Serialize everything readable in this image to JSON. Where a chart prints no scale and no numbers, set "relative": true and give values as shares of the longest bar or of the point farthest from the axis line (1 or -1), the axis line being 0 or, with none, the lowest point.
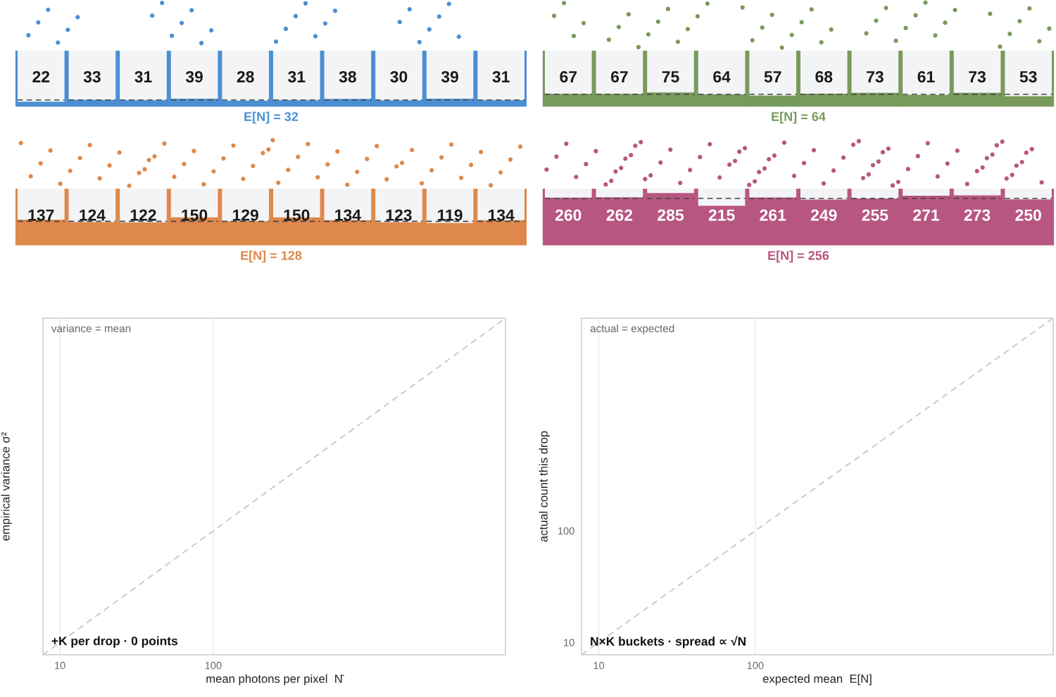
{
  "chart_data": [
    {
      "type": "bar",
      "categories": [
        null,
        null,
        null,
        null,
        null,
        null,
        null,
        null,
        null,
        null
      ],
      "series": [
        {
          "color": "#4a8fd4",
          "values": [
            22,
            33,
            31,
            39,
            28,
            31,
            38,
            30,
            39,
            31
          ]
        }
      ],
      "ylim": [
        0,
        310
      ],
      "tick_labels": false,
      "data_labels": true,
      "xlabel": "E[N] = 32",
      "ref_lines": [
        {
          "axis": "y",
          "value": 32,
          "color": "#444444",
          "line_style": "dashed"
        }
      ]
    },
    {
      "type": "bar",
      "categories": [
        null,
        null,
        null,
        null,
        null,
        null,
        null,
        null,
        null,
        null
      ],
      "series": [
        {
          "color": "#789a5a",
          "values": [
            67,
            67,
            75,
            64,
            57,
            68,
            73,
            61,
            73,
            53
          ]
        }
      ],
      "ylim": [
        0,
        310
      ],
      "tick_labels": false,
      "data_labels": true,
      "xlabel": "E[N] = 64",
      "ref_lines": [
        {
          "axis": "y",
          "value": 64,
          "color": "#444444",
          "line_style": "dashed"
        }
      ]
    },
    {
      "type": "bar",
      "categories": [
        null,
        null,
        null,
        null,
        null,
        null,
        null,
        null,
        null,
        null
      ],
      "series": [
        {
          "color": "#df884b",
          "values": [
            137,
            124,
            122,
            150,
            129,
            150,
            134,
            123,
            119,
            134
          ]
        }
      ],
      "ylim": [
        0,
        310
      ],
      "tick_labels": false,
      "data_labels": true,
      "xlabel": "E[N] = 128",
      "ref_lines": [
        {
          "axis": "y",
          "value": 128,
          "color": "#444444",
          "line_style": "dashed"
        }
      ]
    },
    {
      "type": "bar",
      "categories": [
        null,
        null,
        null,
        null,
        null,
        null,
        null,
        null,
        null,
        null
      ],
      "series": [
        {
          "color": "#b75681",
          "values": [
            260,
            262,
            285,
            215,
            261,
            249,
            255,
            271,
            273,
            250
          ]
        }
      ],
      "ylim": [
        0,
        310
      ],
      "tick_labels": false,
      "data_labels": true,
      "xlabel": "E[N] = 256",
      "ref_lines": [
        {
          "axis": "y",
          "value": 256,
          "color": "#444444",
          "line_style": "dashed"
        }
      ]
    },
    {
      "type": "line",
      "relative": true,
      "xlabel": "mean photons per pixel  N̄",
      "ylabel": "empirical variance σ²",
      "log": "x",
      "xlim": [
        7.75,
        8050
      ],
      "xticks": [
        {
          "value": 10,
          "label": "10"
        },
        {
          "value": 100,
          "label": "100"
        }
      ],
      "grid": "x",
      "line_style": "dashed",
      "series": [
        {
          "color": "#c9c7bb",
          "x": [
            7.75,
            8050
          ],
          "values": [
            0,
            1
          ]
        }
      ],
      "annotations": [
        "variance = mean",
        "+K per drop · 0 points"
      ]
    },
    {
      "type": "line",
      "xlabel": "expected mean  E[N]",
      "ylabel": "actual count this drop",
      "log": "xy",
      "xlim": [
        7.75,
        8000
      ],
      "ylim": [
        7.75,
        8000
      ],
      "xticks": [
        10,
        100
      ],
      "yticks": [
        10,
        100
      ],
      "grid": "x",
      "line_style": "dashed",
      "series": [
        {
          "color": "#c9c7bb",
          "x": [
            7.75,
            8000
          ],
          "values": [
            7.75,
            8000
          ]
        }
      ],
      "annotations": [
        "actual = expected",
        "N×K buckets · spread ∝ √N"
      ]
    }
  ]
}
